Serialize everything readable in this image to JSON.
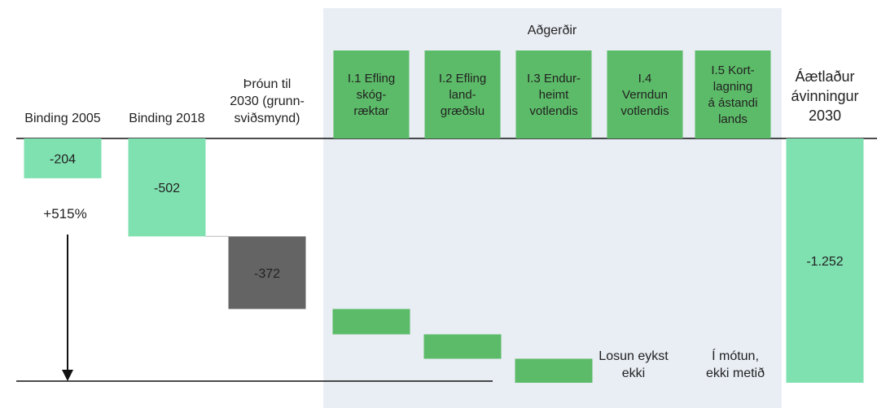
{
  "chart_data": {
    "type": "waterfall",
    "group_label": "Aðgerðir",
    "categories": [
      "Binding 2005",
      "Binding 2018",
      "Þróun til\n2030 (grunn-\nsviðsmynd)",
      "I.1 Efling\nskóg-\nræktar",
      "I.2 Efling\nland-\ngræðslu",
      "I.3 Endur-\nheimt\nvotlendis",
      "I.4\nVerndun\nvotlendis",
      "I.5 Kort-\nlagning\ná ástandi\nlands",
      "Áætlaður\návinningur\n2030"
    ],
    "values": [
      -204,
      -502,
      -372,
      -130,
      -125,
      -123,
      null,
      null,
      -1252
    ],
    "value_labels": [
      "-204",
      "-502",
      "-372",
      null,
      null,
      null,
      null,
      null,
      "-1.252"
    ],
    "measure": [
      "absolute",
      "absolute",
      "relative",
      "relative",
      "relative",
      "relative",
      "relative",
      "relative",
      "absolute"
    ],
    "colors": [
      "#7fe0b0",
      "#7fe0b0",
      "#646464",
      "#5cbb68",
      "#5cbb68",
      "#5cbb68",
      "#5cbb68",
      "#5cbb68",
      "#7fe0b0"
    ],
    "ylim": [
      -1252,
      0
    ],
    "annotations": [
      "+515%",
      "Losun eykst\nekki",
      "Í mótun,\nekki metið"
    ]
  }
}
